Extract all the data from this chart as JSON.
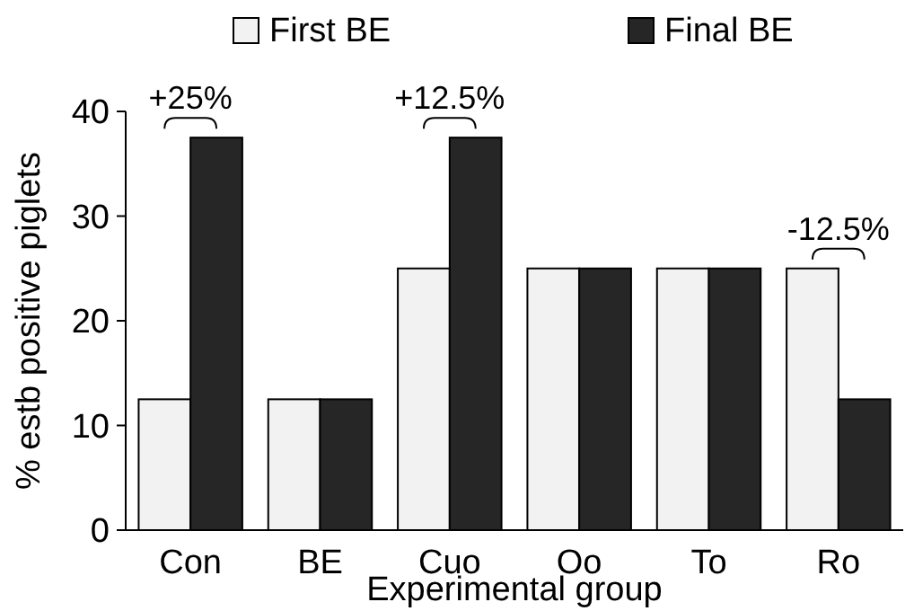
{
  "chart_data": {
    "type": "bar",
    "xlabel": "Experimental group",
    "ylabel": "% estb positive piglets",
    "categories": [
      "Con",
      "BE",
      "Cuo",
      "Oo",
      "To",
      "Ro"
    ],
    "series": [
      {
        "name": "First BE",
        "color": "#f2f2f2",
        "values": [
          12.5,
          12.5,
          25,
          25,
          25,
          25
        ]
      },
      {
        "name": "Final BE",
        "color": "#262626",
        "values": [
          37.5,
          12.5,
          37.5,
          25,
          25,
          12.5
        ]
      }
    ],
    "ylim": [
      0,
      40
    ],
    "yticks": [
      0,
      10,
      20,
      30,
      40
    ],
    "grid": false,
    "legend": "top",
    "annotations": [
      {
        "text": "+25%",
        "x": "Con",
        "y": 37.5
      },
      {
        "text": "+12.5%",
        "x": "Cuo",
        "y": 37.5
      },
      {
        "text": "-12.5%",
        "x": "Ro",
        "y": 25
      }
    ]
  }
}
